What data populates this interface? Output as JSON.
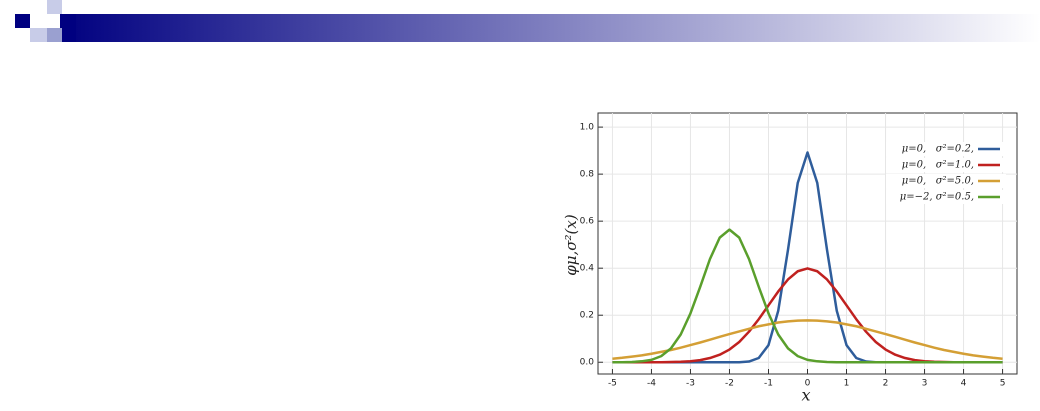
{
  "chart_data": {
    "type": "line",
    "xlabel": "x",
    "ylabel": "φμ,σ²(x)",
    "x": [
      -5,
      -4.75,
      -4.5,
      -4.25,
      -4,
      -3.75,
      -3.5,
      -3.25,
      -3,
      -2.75,
      -2.5,
      -2.25,
      -2,
      -1.75,
      -1.5,
      -1.25,
      -1,
      -0.75,
      -0.5,
      -0.25,
      0,
      0.25,
      0.5,
      0.75,
      1,
      1.25,
      1.5,
      1.75,
      2,
      2.25,
      2.5,
      2.75,
      3,
      3.25,
      3.5,
      3.75,
      4,
      4.25,
      4.5,
      4.75,
      5
    ],
    "series": [
      {
        "name": "μ=0,   σ²=0.2,",
        "color": "#2f5d9b",
        "values": [
          0,
          0,
          0,
          0,
          0,
          0,
          0,
          0,
          0,
          0,
          0,
          0,
          0,
          0,
          0.003,
          0.018,
          0.073,
          0.219,
          0.478,
          0.763,
          0.892,
          0.763,
          0.478,
          0.219,
          0.073,
          0.018,
          0.003,
          0,
          0,
          0,
          0,
          0,
          0,
          0,
          0,
          0,
          0,
          0,
          0,
          0,
          0
        ]
      },
      {
        "name": "μ=0,   σ²=1.0,",
        "color": "#c0211f",
        "values": [
          0,
          0,
          0,
          0,
          0,
          0,
          0.001,
          0.002,
          0.004,
          0.009,
          0.018,
          0.032,
          0.054,
          0.086,
          0.13,
          0.183,
          0.242,
          0.301,
          0.352,
          0.387,
          0.399,
          0.387,
          0.352,
          0.301,
          0.242,
          0.183,
          0.13,
          0.086,
          0.054,
          0.032,
          0.018,
          0.009,
          0.004,
          0.002,
          0.001,
          0,
          0,
          0,
          0,
          0,
          0
        ]
      },
      {
        "name": "μ=0,   σ²=5.0,",
        "color": "#d49f35",
        "values": [
          0.015,
          0.019,
          0.024,
          0.029,
          0.036,
          0.044,
          0.052,
          0.062,
          0.073,
          0.084,
          0.096,
          0.108,
          0.12,
          0.131,
          0.142,
          0.153,
          0.161,
          0.169,
          0.174,
          0.177,
          0.178,
          0.177,
          0.174,
          0.169,
          0.161,
          0.153,
          0.142,
          0.131,
          0.12,
          0.108,
          0.096,
          0.084,
          0.073,
          0.062,
          0.052,
          0.044,
          0.036,
          0.029,
          0.024,
          0.019,
          0.015
        ]
      },
      {
        "name": "μ=−2, σ²=0.5,",
        "color": "#5a9f2c",
        "values": [
          0,
          0,
          0.001,
          0.004,
          0.01,
          0.026,
          0.059,
          0.118,
          0.208,
          0.321,
          0.439,
          0.53,
          0.564,
          0.53,
          0.439,
          0.321,
          0.208,
          0.118,
          0.059,
          0.026,
          0.01,
          0.004,
          0.001,
          0,
          0,
          0,
          0,
          0,
          0,
          0,
          0,
          0,
          0,
          0,
          0,
          0,
          0,
          0,
          0,
          0,
          0
        ]
      }
    ],
    "xlim": [
      -5.37,
      5.37
    ],
    "xticks": [
      -5,
      -4,
      -3,
      -2,
      -1,
      0,
      1,
      2,
      3,
      4,
      5
    ],
    "ylim": [
      -0.05,
      1.06
    ],
    "yticks": [
      {
        "value": 0,
        "label": "0.0"
      },
      0.2,
      0.4,
      0.6,
      0.8,
      {
        "value": 1,
        "label": "1.0"
      }
    ],
    "grid": true,
    "legend": "upper right"
  }
}
